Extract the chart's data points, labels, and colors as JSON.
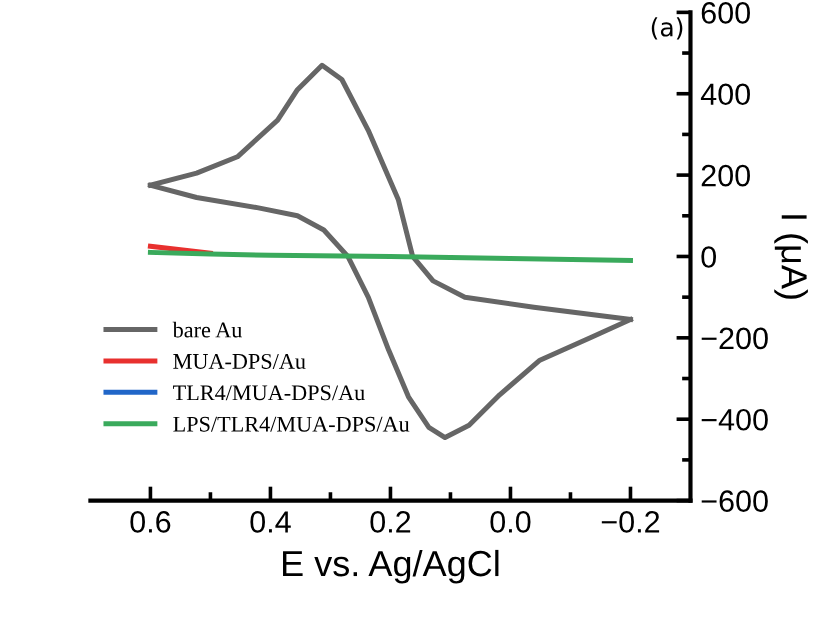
{
  "chart_data": {
    "type": "line",
    "xlabel": "E vs. Ag/AgCl",
    "ylabel": "I (μA)",
    "annotations": [
      "(a)"
    ],
    "xlim": [
      0.7,
      -0.3
    ],
    "xticks": [
      0.6,
      0.4,
      0.2,
      {
        "value": 0,
        "label": "0.0"
      },
      -0.2
    ],
    "ylim": [
      -600,
      600
    ],
    "yticks": [
      600,
      400,
      200,
      0,
      -200,
      -400,
      -600
    ],
    "grid": false,
    "legend": "bottom left",
    "marker": "none",
    "line_style": "solid",
    "series": [
      {
        "name": "bare Au",
        "color": "#666666",
        "x": [
          0.6,
          0.523,
          0.455,
          0.388,
          0.355,
          0.314,
          0.281,
          0.237,
          0.187,
          0.163,
          0.129,
          0.076,
          -0.039,
          -0.2
        ],
        "values": [
          175,
          205,
          245,
          335,
          410,
          470,
          435,
          310,
          140,
          0,
          -60,
          -100,
          -125,
          -155
        ]
      },
      {
        "color": "#666666",
        "x": [
          -0.2,
          -0.133,
          -0.049,
          0.018,
          0.069,
          0.109,
          0.136,
          0.17,
          0.203,
          0.237,
          0.271,
          0.311,
          0.355,
          0.422,
          0.523,
          0.6
        ],
        "values": [
          -155,
          -200,
          -255,
          -340,
          -415,
          -445,
          -420,
          -345,
          -230,
          -100,
          0,
          65,
          100,
          120,
          145,
          175
        ]
      },
      {
        "name": "MUA-DPS/Au",
        "color": "#e8302e",
        "x": [
          0.6,
          0.5
        ],
        "values": [
          25,
          8
        ]
      },
      {
        "name": "TLR4/MUA-DPS/Au",
        "color": "#2166c8"
      },
      {
        "name": "LPS/TLR4/MUA-DPS/Au",
        "color": "#3aaa5c",
        "x": [
          0.6,
          0.5,
          0.4,
          0.2,
          0.0,
          -0.2
        ],
        "values": [
          10,
          6,
          3,
          0,
          -5,
          -10
        ]
      }
    ]
  }
}
